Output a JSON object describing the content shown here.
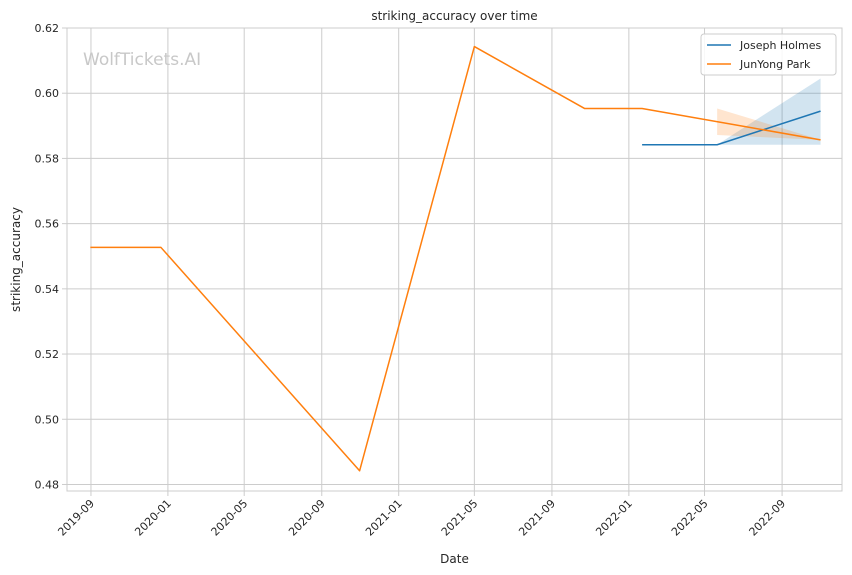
{
  "chart_data": {
    "type": "line",
    "title": "striking_accuracy over time",
    "xlabel": "Date",
    "ylabel": "striking_accuracy",
    "watermark": "WolfTickets.AI",
    "xlim": [
      "2019-07-25",
      "2022-12-05"
    ],
    "ylim": [
      0.478,
      0.62
    ],
    "grid": true,
    "legend_position": "top-right",
    "x_ticks": [
      {
        "date": "2019-09-01",
        "label": "2019-09"
      },
      {
        "date": "2020-01-01",
        "label": "2020-01"
      },
      {
        "date": "2020-05-01",
        "label": "2020-05"
      },
      {
        "date": "2020-09-01",
        "label": "2020-09"
      },
      {
        "date": "2021-01-01",
        "label": "2021-01"
      },
      {
        "date": "2021-05-01",
        "label": "2021-05"
      },
      {
        "date": "2021-09-01",
        "label": "2021-09"
      },
      {
        "date": "2022-01-01",
        "label": "2022-01"
      },
      {
        "date": "2022-05-01",
        "label": "2022-05"
      },
      {
        "date": "2022-09-01",
        "label": "2022-09"
      }
    ],
    "y_ticks": [
      {
        "value": 0.48,
        "label": "0.48"
      },
      {
        "value": 0.5,
        "label": "0.50"
      },
      {
        "value": 0.52,
        "label": "0.52"
      },
      {
        "value": 0.54,
        "label": "0.54"
      },
      {
        "value": 0.56,
        "label": "0.56"
      },
      {
        "value": 0.58,
        "label": "0.58"
      },
      {
        "value": 0.6,
        "label": "0.60"
      },
      {
        "value": 0.62,
        "label": "0.62"
      }
    ],
    "series": [
      {
        "name": "Joseph Holmes",
        "color": "#1f77b4",
        "points": [
          {
            "x": "2022-01-22",
            "y": 0.5842
          },
          {
            "x": "2022-05-21",
            "y": 0.5842
          },
          {
            "x": "2022-11-01",
            "y": 0.5945
          }
        ],
        "band": [
          {
            "x": "2022-05-21",
            "lo": 0.5842,
            "hi": 0.5842
          },
          {
            "x": "2022-11-01",
            "lo": 0.5842,
            "hi": 0.6045
          }
        ]
      },
      {
        "name": "JunYong Park",
        "color": "#ff7f0e",
        "points": [
          {
            "x": "2019-08-31",
            "y": 0.5527
          },
          {
            "x": "2019-12-21",
            "y": 0.5527
          },
          {
            "x": "2020-10-31",
            "y": 0.4842
          },
          {
            "x": "2021-05-01",
            "y": 0.6143
          },
          {
            "x": "2021-10-23",
            "y": 0.5953
          },
          {
            "x": "2022-01-22",
            "y": 0.5953
          },
          {
            "x": "2022-11-01",
            "y": 0.5857
          }
        ],
        "band": [
          {
            "x": "2022-05-21",
            "lo": 0.5872,
            "hi": 0.5953
          },
          {
            "x": "2022-11-01",
            "lo": 0.5857,
            "hi": 0.5857
          }
        ]
      }
    ]
  }
}
